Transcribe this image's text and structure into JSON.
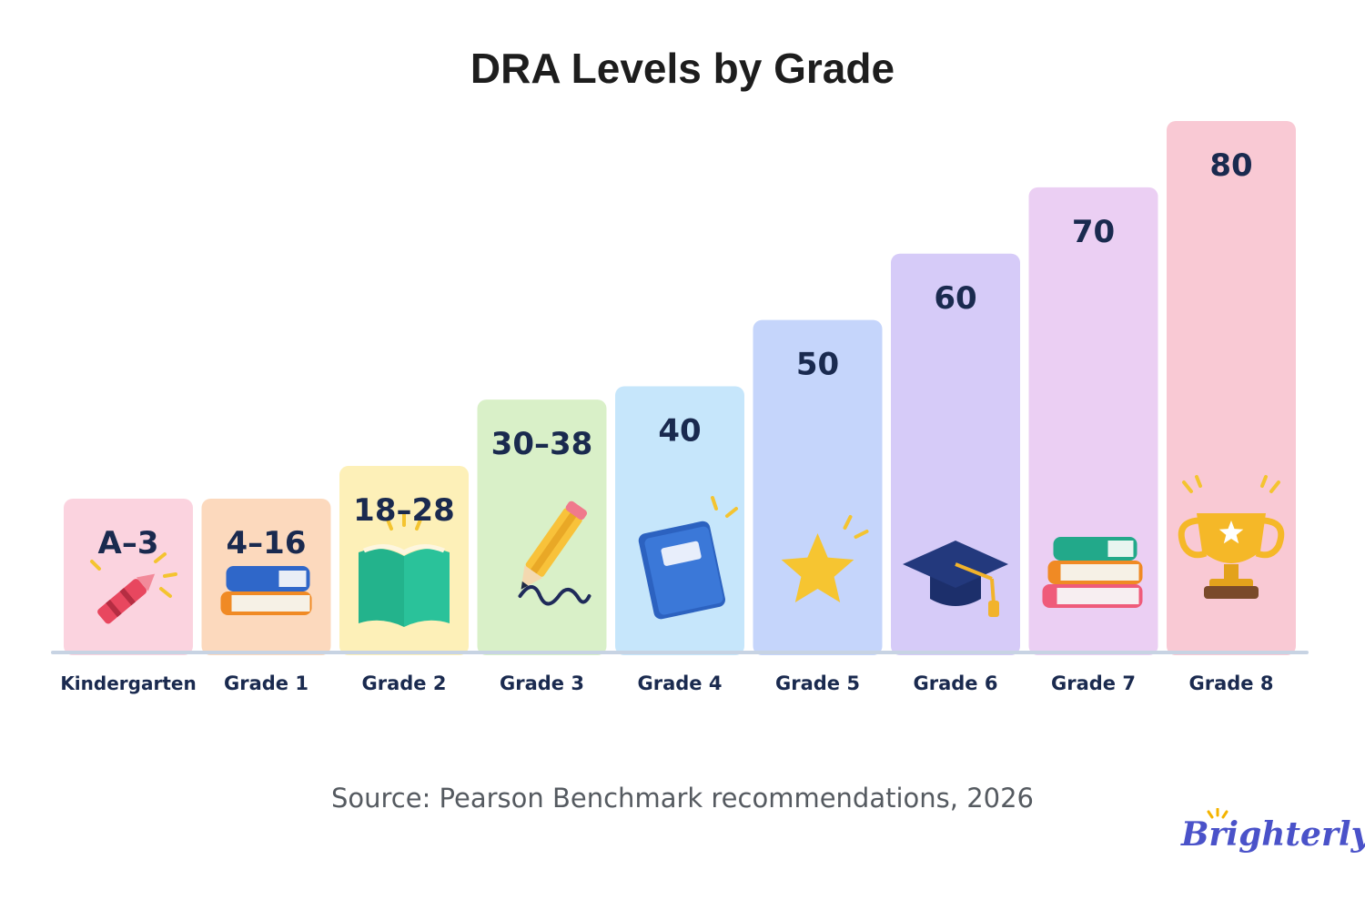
{
  "title": "DRA Levels by Grade",
  "source": "Source: Pearson Benchmark recommendations, 2026",
  "brand": "Brighterly",
  "chart_data": {
    "type": "bar",
    "title": "DRA Levels by Grade",
    "categories": [
      "Kindergarten",
      "Grade 1",
      "Grade 2",
      "Grade 3",
      "Grade 4",
      "Grade 5",
      "Grade 6",
      "Grade 7",
      "Grade 8"
    ],
    "value_labels": [
      "A–3",
      "4–16",
      "18–28",
      "30–38",
      "40",
      "50",
      "60",
      "70",
      "80"
    ],
    "values": [
      3,
      16,
      28,
      38,
      40,
      50,
      60,
      70,
      80
    ],
    "ylim": [
      0,
      80
    ],
    "grid": false,
    "legend": "none",
    "bar_colors": [
      "#fbd3df",
      "#fcd9bd",
      "#fdf0b8",
      "#d9f0c8",
      "#c6e6fb",
      "#c5d5fb",
      "#d6cbf8",
      "#ebcff3",
      "#f9c9d4"
    ],
    "icons": [
      "crayon-icon",
      "books-icon",
      "open-book-icon",
      "pencil-icon",
      "notebook-icon",
      "star-icon",
      "graduation-cap-icon",
      "book-stack-icon",
      "trophy-icon"
    ]
  },
  "colors": {
    "label_text": "#1a2a4f",
    "baseline": "#c7d3e3",
    "brand": "#4a52c9",
    "brand_accent": "#f4b400"
  }
}
